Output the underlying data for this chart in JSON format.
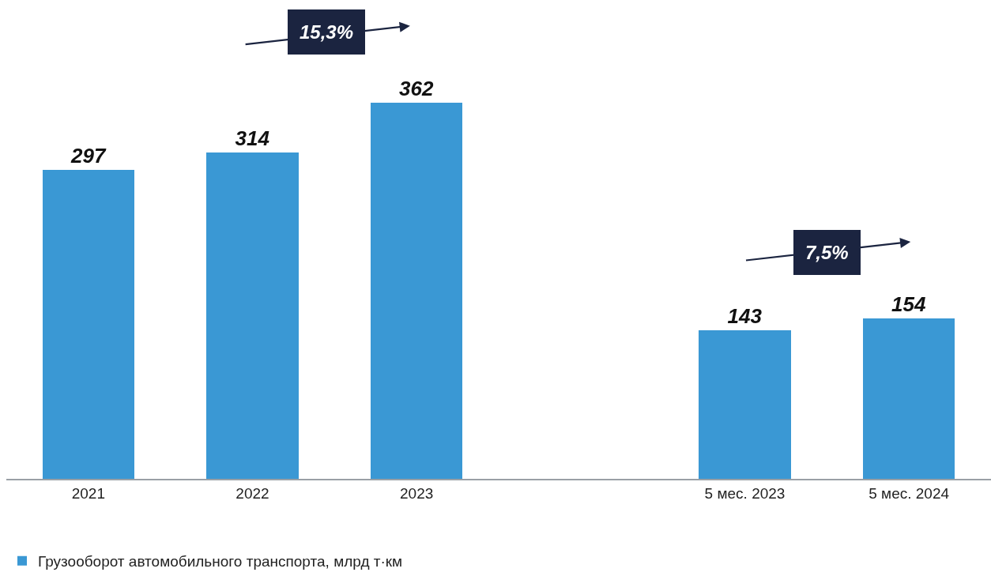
{
  "chart_data": {
    "type": "bar",
    "categories": [
      "2021",
      "2022",
      "2023",
      null,
      "5 мес. 2023",
      "5 мес. 2024"
    ],
    "series": [
      {
        "name": "Грузооборот автомобильного транспорта, млрд т·км",
        "color": "#3a98d4",
        "values": [
          297,
          314,
          362,
          null,
          143,
          154
        ]
      }
    ],
    "data_labels": true,
    "legend": "bottom left",
    "grid": false,
    "annotations": [
      "15,3%",
      "7,5%"
    ]
  }
}
